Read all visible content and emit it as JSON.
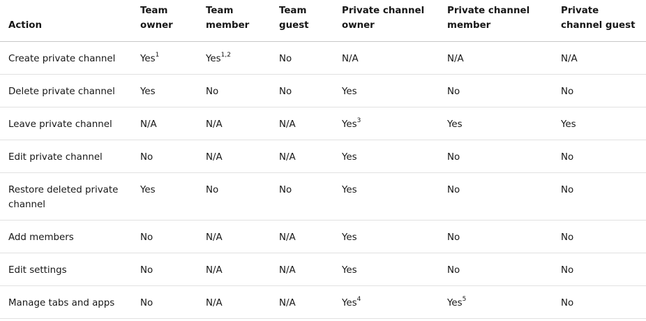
{
  "table": {
    "headers": [
      "Action",
      "Team owner",
      "Team member",
      "Team guest",
      "Private channel owner",
      "Private channel member",
      "Private channel guest"
    ],
    "rows": [
      {
        "action": "Create private channel",
        "cells": [
          {
            "text": "Yes",
            "sup": "1"
          },
          {
            "text": "Yes",
            "sup": "1,2"
          },
          {
            "text": "No",
            "sup": ""
          },
          {
            "text": "N/A",
            "sup": ""
          },
          {
            "text": "N/A",
            "sup": ""
          },
          {
            "text": "N/A",
            "sup": ""
          }
        ]
      },
      {
        "action": "Delete private channel",
        "cells": [
          {
            "text": "Yes",
            "sup": ""
          },
          {
            "text": "No",
            "sup": ""
          },
          {
            "text": "No",
            "sup": ""
          },
          {
            "text": "Yes",
            "sup": ""
          },
          {
            "text": "No",
            "sup": ""
          },
          {
            "text": "No",
            "sup": ""
          }
        ]
      },
      {
        "action": "Leave private channel",
        "cells": [
          {
            "text": "N/A",
            "sup": ""
          },
          {
            "text": "N/A",
            "sup": ""
          },
          {
            "text": "N/A",
            "sup": ""
          },
          {
            "text": "Yes",
            "sup": "3"
          },
          {
            "text": "Yes",
            "sup": ""
          },
          {
            "text": "Yes",
            "sup": ""
          }
        ]
      },
      {
        "action": "Edit private channel",
        "cells": [
          {
            "text": "No",
            "sup": ""
          },
          {
            "text": "N/A",
            "sup": ""
          },
          {
            "text": "N/A",
            "sup": ""
          },
          {
            "text": "Yes",
            "sup": ""
          },
          {
            "text": "No",
            "sup": ""
          },
          {
            "text": "No",
            "sup": ""
          }
        ]
      },
      {
        "action": "Restore deleted private channel",
        "cells": [
          {
            "text": "Yes",
            "sup": ""
          },
          {
            "text": "No",
            "sup": ""
          },
          {
            "text": "No",
            "sup": ""
          },
          {
            "text": "Yes",
            "sup": ""
          },
          {
            "text": "No",
            "sup": ""
          },
          {
            "text": "No",
            "sup": ""
          }
        ]
      },
      {
        "action": "Add members",
        "cells": [
          {
            "text": "No",
            "sup": ""
          },
          {
            "text": "N/A",
            "sup": ""
          },
          {
            "text": "N/A",
            "sup": ""
          },
          {
            "text": "Yes",
            "sup": ""
          },
          {
            "text": "No",
            "sup": ""
          },
          {
            "text": "No",
            "sup": ""
          }
        ]
      },
      {
        "action": "Edit settings",
        "cells": [
          {
            "text": "No",
            "sup": ""
          },
          {
            "text": "N/A",
            "sup": ""
          },
          {
            "text": "N/A",
            "sup": ""
          },
          {
            "text": "Yes",
            "sup": ""
          },
          {
            "text": "No",
            "sup": ""
          },
          {
            "text": "No",
            "sup": ""
          }
        ]
      },
      {
        "action": "Manage tabs and apps",
        "cells": [
          {
            "text": "No",
            "sup": ""
          },
          {
            "text": "N/A",
            "sup": ""
          },
          {
            "text": "N/A",
            "sup": ""
          },
          {
            "text": "Yes",
            "sup": "4"
          },
          {
            "text": "Yes",
            "sup": "5"
          },
          {
            "text": "No",
            "sup": ""
          }
        ]
      }
    ]
  }
}
